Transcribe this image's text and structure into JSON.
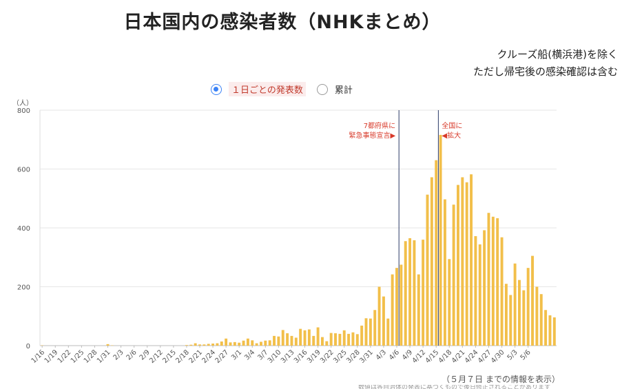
{
  "title": "日本国内の感染者数（NHKまとめ）",
  "notes": [
    "クルーズ船(横浜港)を除く",
    "ただし帰宅後の感染確認は含む"
  ],
  "toggle": {
    "daily_label": "１日ごとの発表数",
    "cumulative_label": "累計",
    "selected": "daily"
  },
  "footnote": "（５月７日 までの情報を表示）",
  "cut_text": "数値は各自治体の発表に基づくもので後日修正されることがあります",
  "colors": {
    "bar": "#f2bf4a",
    "event_line": "#2b3a67",
    "annotation": "#d83a2a",
    "grid": "#e6e6e6"
  },
  "chart_data": {
    "type": "bar",
    "ylabel": "（人）",
    "ylim": [
      0,
      800
    ],
    "yticks": [
      0,
      200,
      400,
      600,
      800
    ],
    "start_date": "1/16",
    "tick_labels": [
      "1/16",
      "1/19",
      "1/22",
      "1/25",
      "1/28",
      "1/31",
      "2/3",
      "2/6",
      "2/9",
      "2/12",
      "2/15",
      "2/18",
      "2/21",
      "2/24",
      "2/27",
      "3/1",
      "3/4",
      "3/7",
      "3/10",
      "3/13",
      "3/16",
      "3/19",
      "3/22",
      "3/25",
      "3/28",
      "3/31",
      "4/3",
      "4/6",
      "4/9",
      "4/12",
      "4/15",
      "4/18",
      "4/21",
      "4/24",
      "4/27",
      "4/30",
      "5/3",
      "5/6"
    ],
    "values": [
      1,
      0,
      0,
      0,
      0,
      0,
      0,
      0,
      0,
      0,
      0,
      0,
      0,
      0,
      0,
      5,
      1,
      0,
      0,
      0,
      0,
      0,
      0,
      0,
      0,
      0,
      0,
      0,
      0,
      0,
      0,
      0,
      0,
      2,
      3,
      8,
      4,
      4,
      6,
      7,
      8,
      14,
      24,
      11,
      12,
      10,
      17,
      24,
      18,
      8,
      13,
      17,
      18,
      33,
      31,
      53,
      42,
      33,
      27,
      57,
      52,
      55,
      33,
      62,
      29,
      15,
      43,
      42,
      40,
      52,
      40,
      45,
      39,
      68,
      93,
      92,
      121,
      200,
      167,
      92,
      242,
      264,
      275,
      355,
      365,
      358,
      242,
      360,
      513,
      572,
      630,
      716,
      497,
      294,
      479,
      546,
      572,
      555,
      582,
      372,
      344,
      392,
      451,
      438,
      433,
      368,
      210,
      172,
      279,
      223,
      188,
      264,
      305,
      200,
      175,
      121,
      103,
      96
    ],
    "events": [
      {
        "date": "4/7",
        "label": [
          "7都府県に",
          "緊急事態宣言▶"
        ]
      },
      {
        "date": "4/16",
        "label": [
          "全国に",
          "◀拡大"
        ]
      }
    ],
    "grid": true
  }
}
